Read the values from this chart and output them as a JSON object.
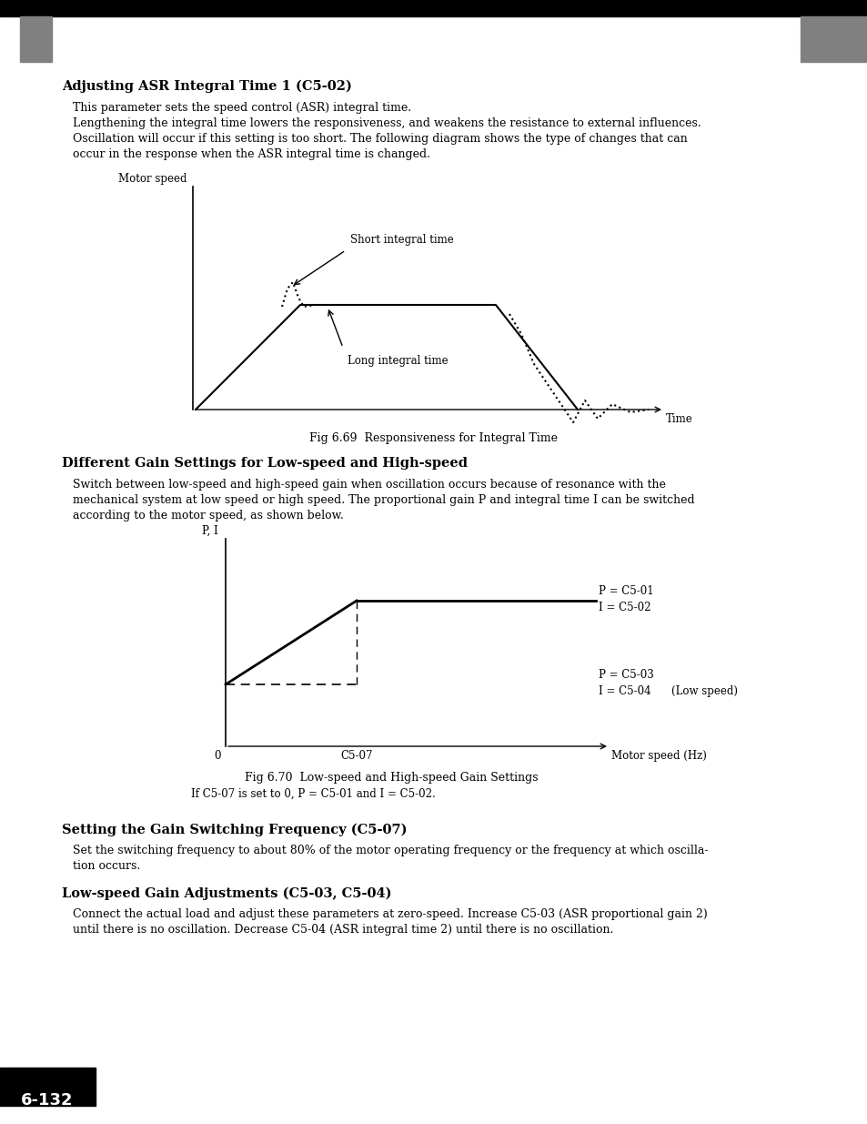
{
  "bg_color": "#ffffff",
  "header_bar_color": "#000000",
  "header_square_color": "#808080",
  "page_number": "6-132",
  "section1_title": "Adjusting ASR Integral Time 1 (C5-02)",
  "section1_body_line1": "This parameter sets the speed control (ASR) integral time.",
  "section1_body_line2": "Lengthening the integral time lowers the responsiveness, and weakens the resistance to external influences.",
  "section1_body_line3": "Oscillation will occur if this setting is too short. The following diagram shows the type of changes that can",
  "section1_body_line4": "occur in the response when the ASR integral time is changed.",
  "fig1_ylabel": "Motor speed",
  "fig1_xlabel": "Time",
  "fig1_label_short": "Short integral time",
  "fig1_label_long": "Long integral time",
  "fig1_caption": "Fig 6.69  Responsiveness for Integral Time",
  "section2_title": "Different Gain Settings for Low-speed and High-speed",
  "section2_body_line1": "Switch between low-speed and high-speed gain when oscillation occurs because of resonance with the",
  "section2_body_line2": "mechanical system at low speed or high speed. The proportional gain P and integral time I can be switched",
  "section2_body_line3": "according to the motor speed, as shown below.",
  "fig2_ylabel": "P, I",
  "fig2_xlabel": "Motor speed (Hz)",
  "fig2_label1a": "P = C5-01",
  "fig2_label1b": "I = C5-02",
  "fig2_label2a": "P = C5-03",
  "fig2_label2b": "I = C5-04",
  "fig2_label2c": "(Low speed)",
  "fig2_x0": "0",
  "fig2_xswitch": "C5-07",
  "fig2_caption": "Fig 6.70  Low-speed and High-speed Gain Settings",
  "fig2_note": "If C5-07 is set to 0, P = C5-01 and I = C5-02.",
  "section3_title": "Setting the Gain Switching Frequency (C5-07)",
  "section3_body_line1": "Set the switching frequency to about 80% of the motor operating frequency or the frequency at which oscilla-",
  "section3_body_line2": "tion occurs.",
  "section4_title": "Low-speed Gain Adjustments (C5-03, C5-04)",
  "section4_body_line1": "Connect the actual load and adjust these parameters at zero-speed. Increase C5-03 (ASR proportional gain 2)",
  "section4_body_line2": "until there is no oscillation. Decrease C5-04 (ASR integral time 2) until there is no oscillation."
}
